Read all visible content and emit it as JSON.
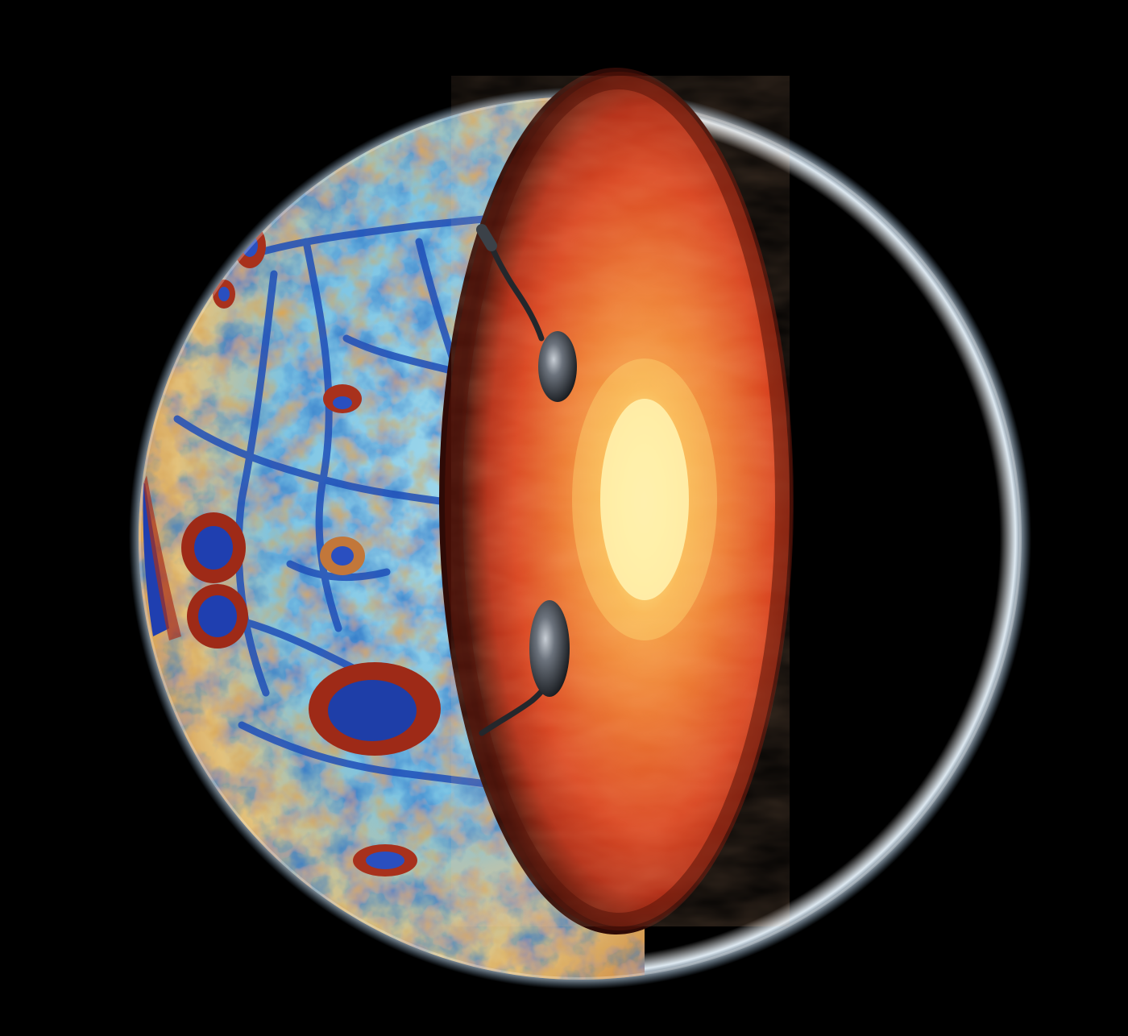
{
  "scene": {
    "subject": "moon-cutaway",
    "background_color": "#000000",
    "surface_palette": {
      "low": "#1e3fae",
      "mid_low": "#3fa0d6",
      "mid": "#8fd0e6",
      "mid_high": "#e6c47a",
      "high": "#a8311c"
    },
    "interior_palette": {
      "crust": "#3b0d08",
      "mantle_outer": "#8e2512",
      "mantle": "#d9451f",
      "mantle_inner": "#f07a2e",
      "core": "#fff3b0"
    },
    "limb_glow_color": "#e8f4ff",
    "intrusion_color": "#2a2f36"
  }
}
